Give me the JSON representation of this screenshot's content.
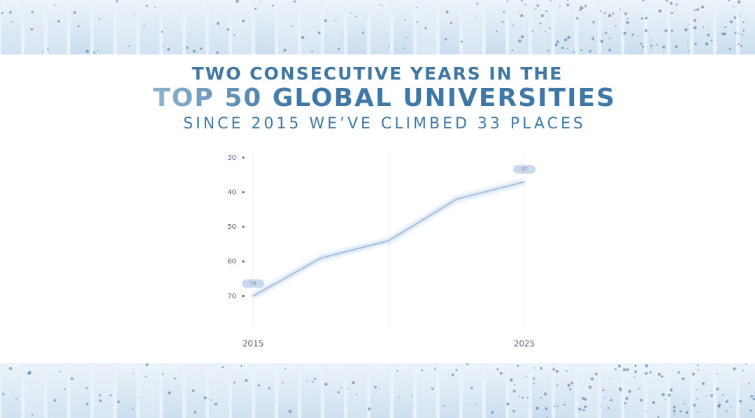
{
  "chart_data": {
    "type": "line",
    "title": "TWO CONSECUTIVE YEARS IN THE",
    "subtitle": "TOP 50 GLOBAL UNIVERSITIES",
    "annotation": "SINCE 2015 WE’VE CLIMBED 33 PLACES",
    "categories": [
      "2015",
      null,
      null,
      null,
      "2025"
    ],
    "values": [
      70,
      59,
      54,
      42,
      37
    ],
    "color": "#9fb9d8",
    "ylim": [
      28,
      79
    ],
    "y_inverted": true,
    "yticks": [
      30,
      40,
      50,
      60,
      70
    ]
  }
}
